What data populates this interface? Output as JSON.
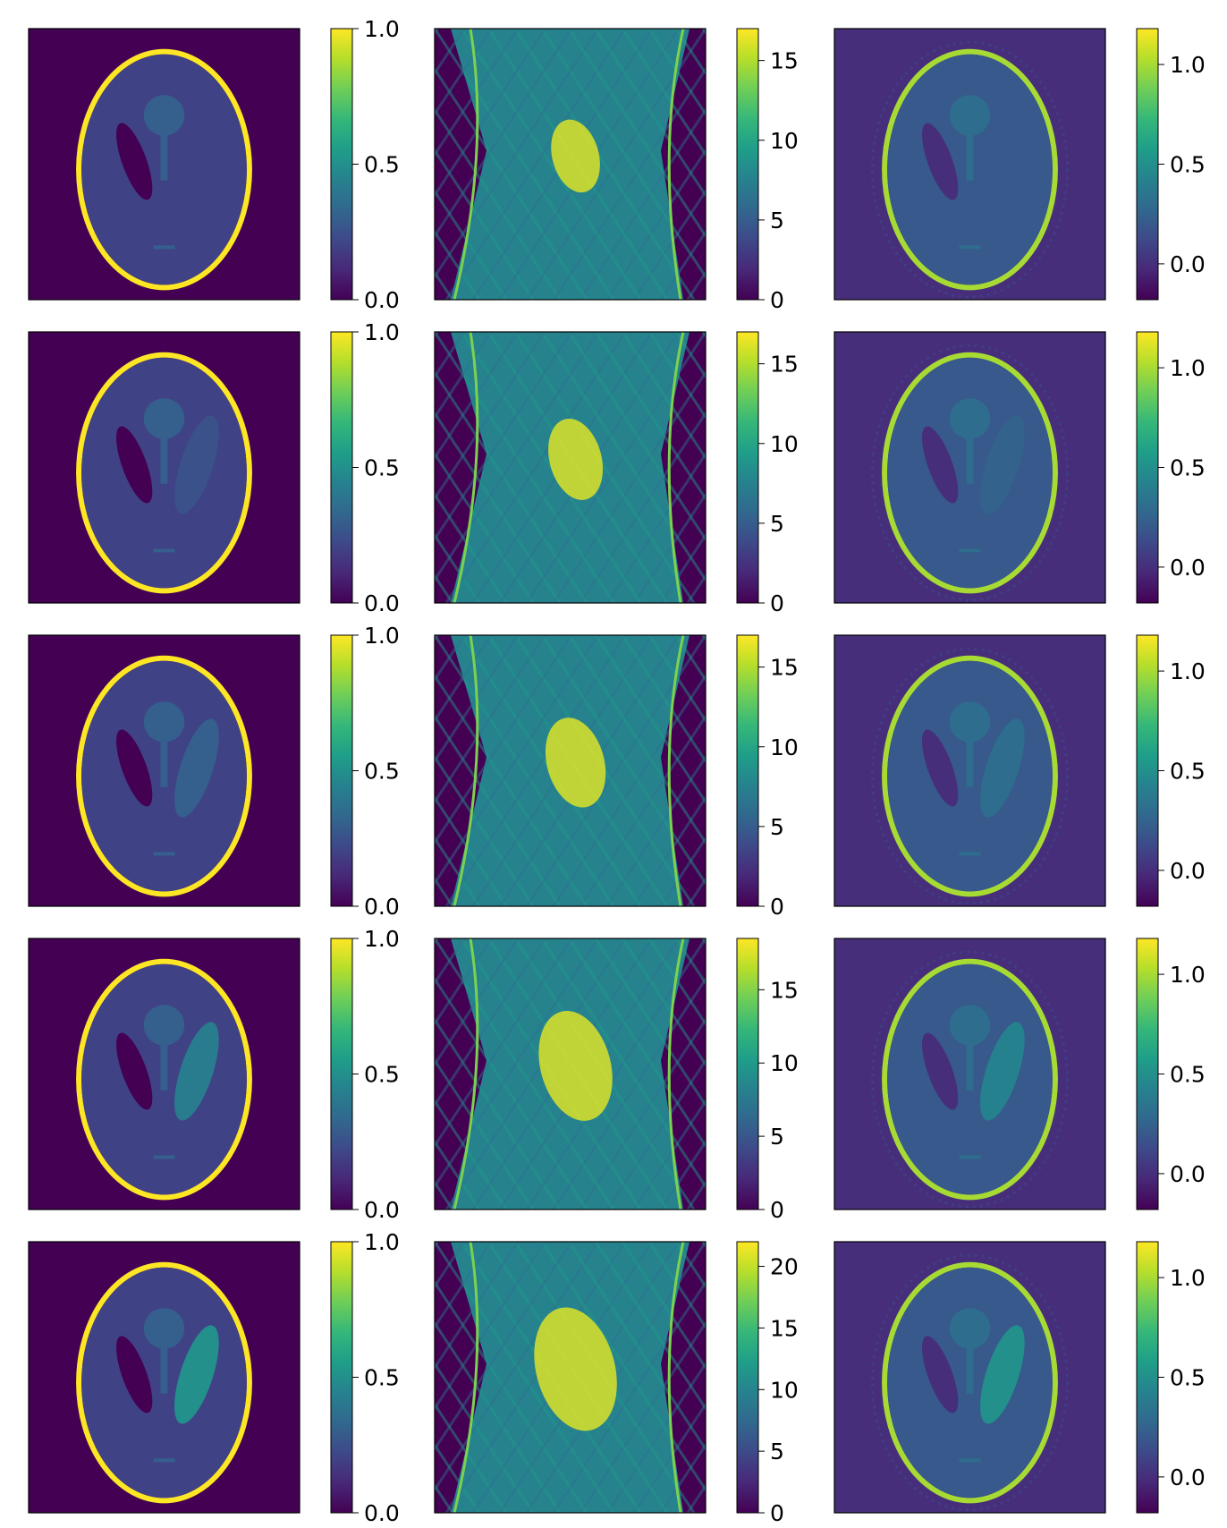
{
  "figure": {
    "columns": [
      "phantom",
      "sinogram",
      "reconstruction"
    ],
    "colormap": "viridis",
    "colormap_stops": [
      "#440154",
      "#482878",
      "#3e4989",
      "#31688e",
      "#26828e",
      "#1f9e89",
      "#35b779",
      "#6ece58",
      "#b5de2b",
      "#fde725"
    ],
    "axis_ticks_shown": false
  },
  "chart_data": [
    {
      "type": "heatmap",
      "row": 1,
      "panel": "phantom",
      "colorbar": {
        "min": 0.0,
        "max": 1.0,
        "ticks": [
          0.0,
          0.5,
          1.0
        ],
        "tick_labels": [
          "0.0",
          "0.5",
          "1.0"
        ]
      },
      "params": {
        "right_ellipse_value": 0.2
      }
    },
    {
      "type": "heatmap",
      "row": 1,
      "panel": "sinogram",
      "colorbar": {
        "min": 0,
        "max": 17,
        "ticks": [
          0,
          5,
          10,
          15
        ],
        "tick_labels": [
          "0",
          "5",
          "10",
          "15"
        ]
      },
      "params": {
        "right_ellipse_value": 0.2
      }
    },
    {
      "type": "heatmap",
      "row": 1,
      "panel": "reconstruction",
      "colorbar": {
        "min": -0.18,
        "max": 1.18,
        "ticks": [
          0.0,
          0.5,
          1.0
        ],
        "tick_labels": [
          "0.0",
          "0.5",
          "1.0"
        ]
      },
      "params": {
        "right_ellipse_value": 0.2
      }
    },
    {
      "type": "heatmap",
      "row": 2,
      "panel": "phantom",
      "colorbar": {
        "min": 0.0,
        "max": 1.0,
        "ticks": [
          0.0,
          0.5,
          1.0
        ],
        "tick_labels": [
          "0.0",
          "0.5",
          "1.0"
        ]
      },
      "params": {
        "right_ellipse_value": 0.25
      }
    },
    {
      "type": "heatmap",
      "row": 2,
      "panel": "sinogram",
      "colorbar": {
        "min": 0,
        "max": 17,
        "ticks": [
          0,
          5,
          10,
          15
        ],
        "tick_labels": [
          "0",
          "5",
          "10",
          "15"
        ]
      },
      "params": {
        "right_ellipse_value": 0.25
      }
    },
    {
      "type": "heatmap",
      "row": 2,
      "panel": "reconstruction",
      "colorbar": {
        "min": -0.18,
        "max": 1.18,
        "ticks": [
          0.0,
          0.5,
          1.0
        ],
        "tick_labels": [
          "0.0",
          "0.5",
          "1.0"
        ]
      },
      "params": {
        "right_ellipse_value": 0.25
      }
    },
    {
      "type": "heatmap",
      "row": 3,
      "panel": "phantom",
      "colorbar": {
        "min": 0.0,
        "max": 1.0,
        "ticks": [
          0.0,
          0.5,
          1.0
        ],
        "tick_labels": [
          "0.0",
          "0.5",
          "1.0"
        ]
      },
      "params": {
        "right_ellipse_value": 0.3
      }
    },
    {
      "type": "heatmap",
      "row": 3,
      "panel": "sinogram",
      "colorbar": {
        "min": 0,
        "max": 17,
        "ticks": [
          0,
          5,
          10,
          15
        ],
        "tick_labels": [
          "0",
          "5",
          "10",
          "15"
        ]
      },
      "params": {
        "right_ellipse_value": 0.3
      }
    },
    {
      "type": "heatmap",
      "row": 3,
      "panel": "reconstruction",
      "colorbar": {
        "min": -0.18,
        "max": 1.18,
        "ticks": [
          0.0,
          0.5,
          1.0
        ],
        "tick_labels": [
          "0.0",
          "0.5",
          "1.0"
        ]
      },
      "params": {
        "right_ellipse_value": 0.3
      }
    },
    {
      "type": "heatmap",
      "row": 4,
      "panel": "phantom",
      "colorbar": {
        "min": 0.0,
        "max": 1.0,
        "ticks": [
          0.0,
          0.5,
          1.0
        ],
        "tick_labels": [
          "0.0",
          "0.5",
          "1.0"
        ]
      },
      "params": {
        "right_ellipse_value": 0.42
      }
    },
    {
      "type": "heatmap",
      "row": 4,
      "panel": "sinogram",
      "colorbar": {
        "min": 0,
        "max": 18.5,
        "ticks": [
          0,
          5,
          10,
          15
        ],
        "tick_labels": [
          "0",
          "5",
          "10",
          "15"
        ]
      },
      "params": {
        "right_ellipse_value": 0.42
      }
    },
    {
      "type": "heatmap",
      "row": 4,
      "panel": "reconstruction",
      "colorbar": {
        "min": -0.18,
        "max": 1.18,
        "ticks": [
          0.0,
          0.5,
          1.0
        ],
        "tick_labels": [
          "0.0",
          "0.5",
          "1.0"
        ]
      },
      "params": {
        "right_ellipse_value": 0.42
      }
    },
    {
      "type": "heatmap",
      "row": 5,
      "panel": "phantom",
      "colorbar": {
        "min": 0.0,
        "max": 1.0,
        "ticks": [
          0.0,
          0.5,
          1.0
        ],
        "tick_labels": [
          "0.0",
          "0.5",
          "1.0"
        ]
      },
      "params": {
        "right_ellipse_value": 0.5
      }
    },
    {
      "type": "heatmap",
      "row": 5,
      "panel": "sinogram",
      "colorbar": {
        "min": 0,
        "max": 22,
        "ticks": [
          0,
          5,
          10,
          15,
          20
        ],
        "tick_labels": [
          "0",
          "5",
          "10",
          "15",
          "20"
        ]
      },
      "params": {
        "right_ellipse_value": 0.5
      }
    },
    {
      "type": "heatmap",
      "row": 5,
      "panel": "reconstruction",
      "colorbar": {
        "min": -0.18,
        "max": 1.18,
        "ticks": [
          0.0,
          0.5,
          1.0
        ],
        "tick_labels": [
          "0.0",
          "0.5",
          "1.0"
        ]
      },
      "params": {
        "right_ellipse_value": 0.5
      }
    }
  ]
}
